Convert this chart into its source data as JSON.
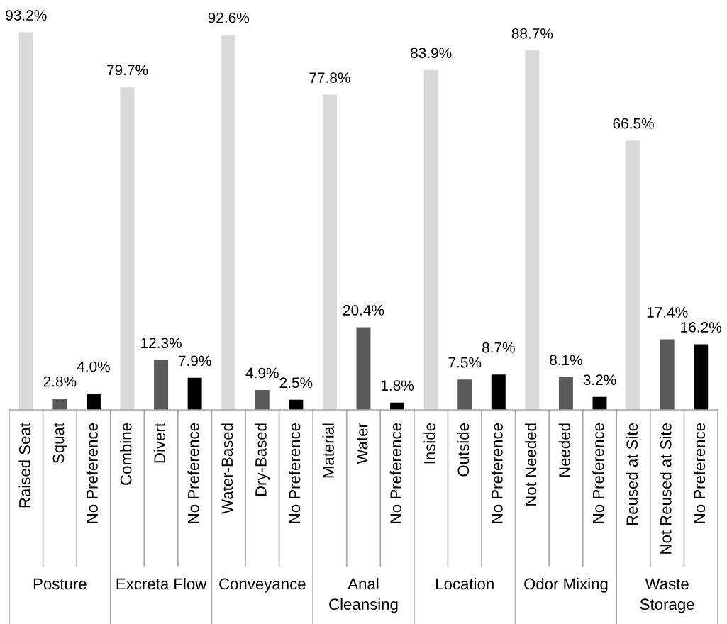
{
  "chart_data": {
    "type": "bar",
    "categories": [
      "Raised Seat",
      "Squat",
      "No Preference",
      "Combine",
      "Divert",
      "No Preference",
      "Water-Based",
      "Dry-Based",
      "No Preference",
      "Material",
      "Water",
      "No Preference",
      "Inside",
      "Outside",
      "No Preference",
      "Not Needed",
      "Needed",
      "No Preference",
      "Reused at Site",
      "Not Reused at Site",
      "No Preference"
    ],
    "values": [
      93.2,
      2.8,
      4.0,
      79.7,
      12.3,
      7.9,
      92.6,
      4.9,
      2.5,
      77.8,
      20.4,
      1.8,
      83.9,
      7.5,
      8.7,
      88.7,
      8.1,
      3.2,
      66.5,
      17.4,
      16.2
    ],
    "value_labels": [
      "93.2%",
      "2.8%",
      "4.0%",
      "79.7%",
      "12.3%",
      "7.9%",
      "92.6%",
      "4.9%",
      "2.5%",
      "77.8%",
      "20.4%",
      "1.8%",
      "83.9%",
      "7.5%",
      "8.7%",
      "88.7%",
      "8.1%",
      "3.2%",
      "66.5%",
      "17.4%",
      "16.2%"
    ],
    "colors": [
      "#d9d9d9",
      "#595959",
      "#000000",
      "#d9d9d9",
      "#595959",
      "#000000",
      "#d9d9d9",
      "#595959",
      "#000000",
      "#d9d9d9",
      "#595959",
      "#000000",
      "#d9d9d9",
      "#595959",
      "#000000",
      "#d9d9d9",
      "#595959",
      "#000000",
      "#d9d9d9",
      "#595959",
      "#000000"
    ],
    "annotations": [
      "Posture",
      "Excreta Flow",
      "Conveyance",
      "Anal\nCleansing",
      "Location",
      "Odor Mixing",
      "Waste\nStorage"
    ]
  }
}
